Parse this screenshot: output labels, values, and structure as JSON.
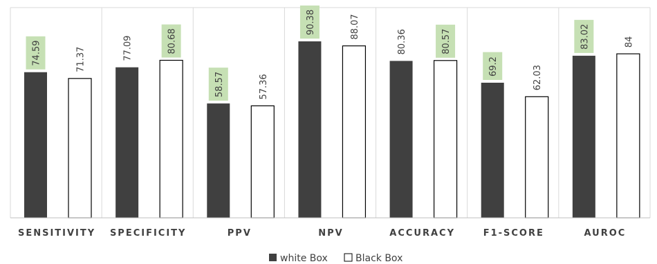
{
  "chart_data": {
    "type": "bar",
    "categories": [
      "SENSITIVITY",
      "SPECIFICITY",
      "PPV",
      "NPV",
      "ACCURACY",
      "F1-SCORE",
      "AUROC"
    ],
    "series": [
      {
        "name": "white Box",
        "values": [
          74.59,
          77.09,
          58.57,
          90.38,
          80.36,
          69.2,
          83.02
        ]
      },
      {
        "name": "Black Box",
        "values": [
          71.37,
          80.68,
          57.36,
          88.07,
          80.57,
          62.03,
          84
        ]
      }
    ],
    "value_labels": [
      [
        "74.59",
        "77.09",
        "58.57",
        "90.38",
        "80.36",
        "69.2",
        "83.02"
      ],
      [
        "71.37",
        "80.68",
        "57.36",
        "88.07",
        "80.57",
        "62.03",
        "84"
      ]
    ],
    "highlighted_labels": [
      [
        true,
        false,
        true,
        true,
        false,
        true,
        true
      ],
      [
        false,
        true,
        false,
        false,
        true,
        false,
        false
      ]
    ],
    "ylim": [
      0,
      100
    ],
    "grid": false,
    "legend_position": "bottom",
    "colors": {
      "white_box_fill": "#404040",
      "black_box_fill": "#ffffff",
      "bar_stroke": "#000000",
      "label_highlight": "#c6e0b4",
      "label_text": "#404040",
      "separator": "#d9d9d9",
      "axis": "#bfbfbf"
    }
  }
}
